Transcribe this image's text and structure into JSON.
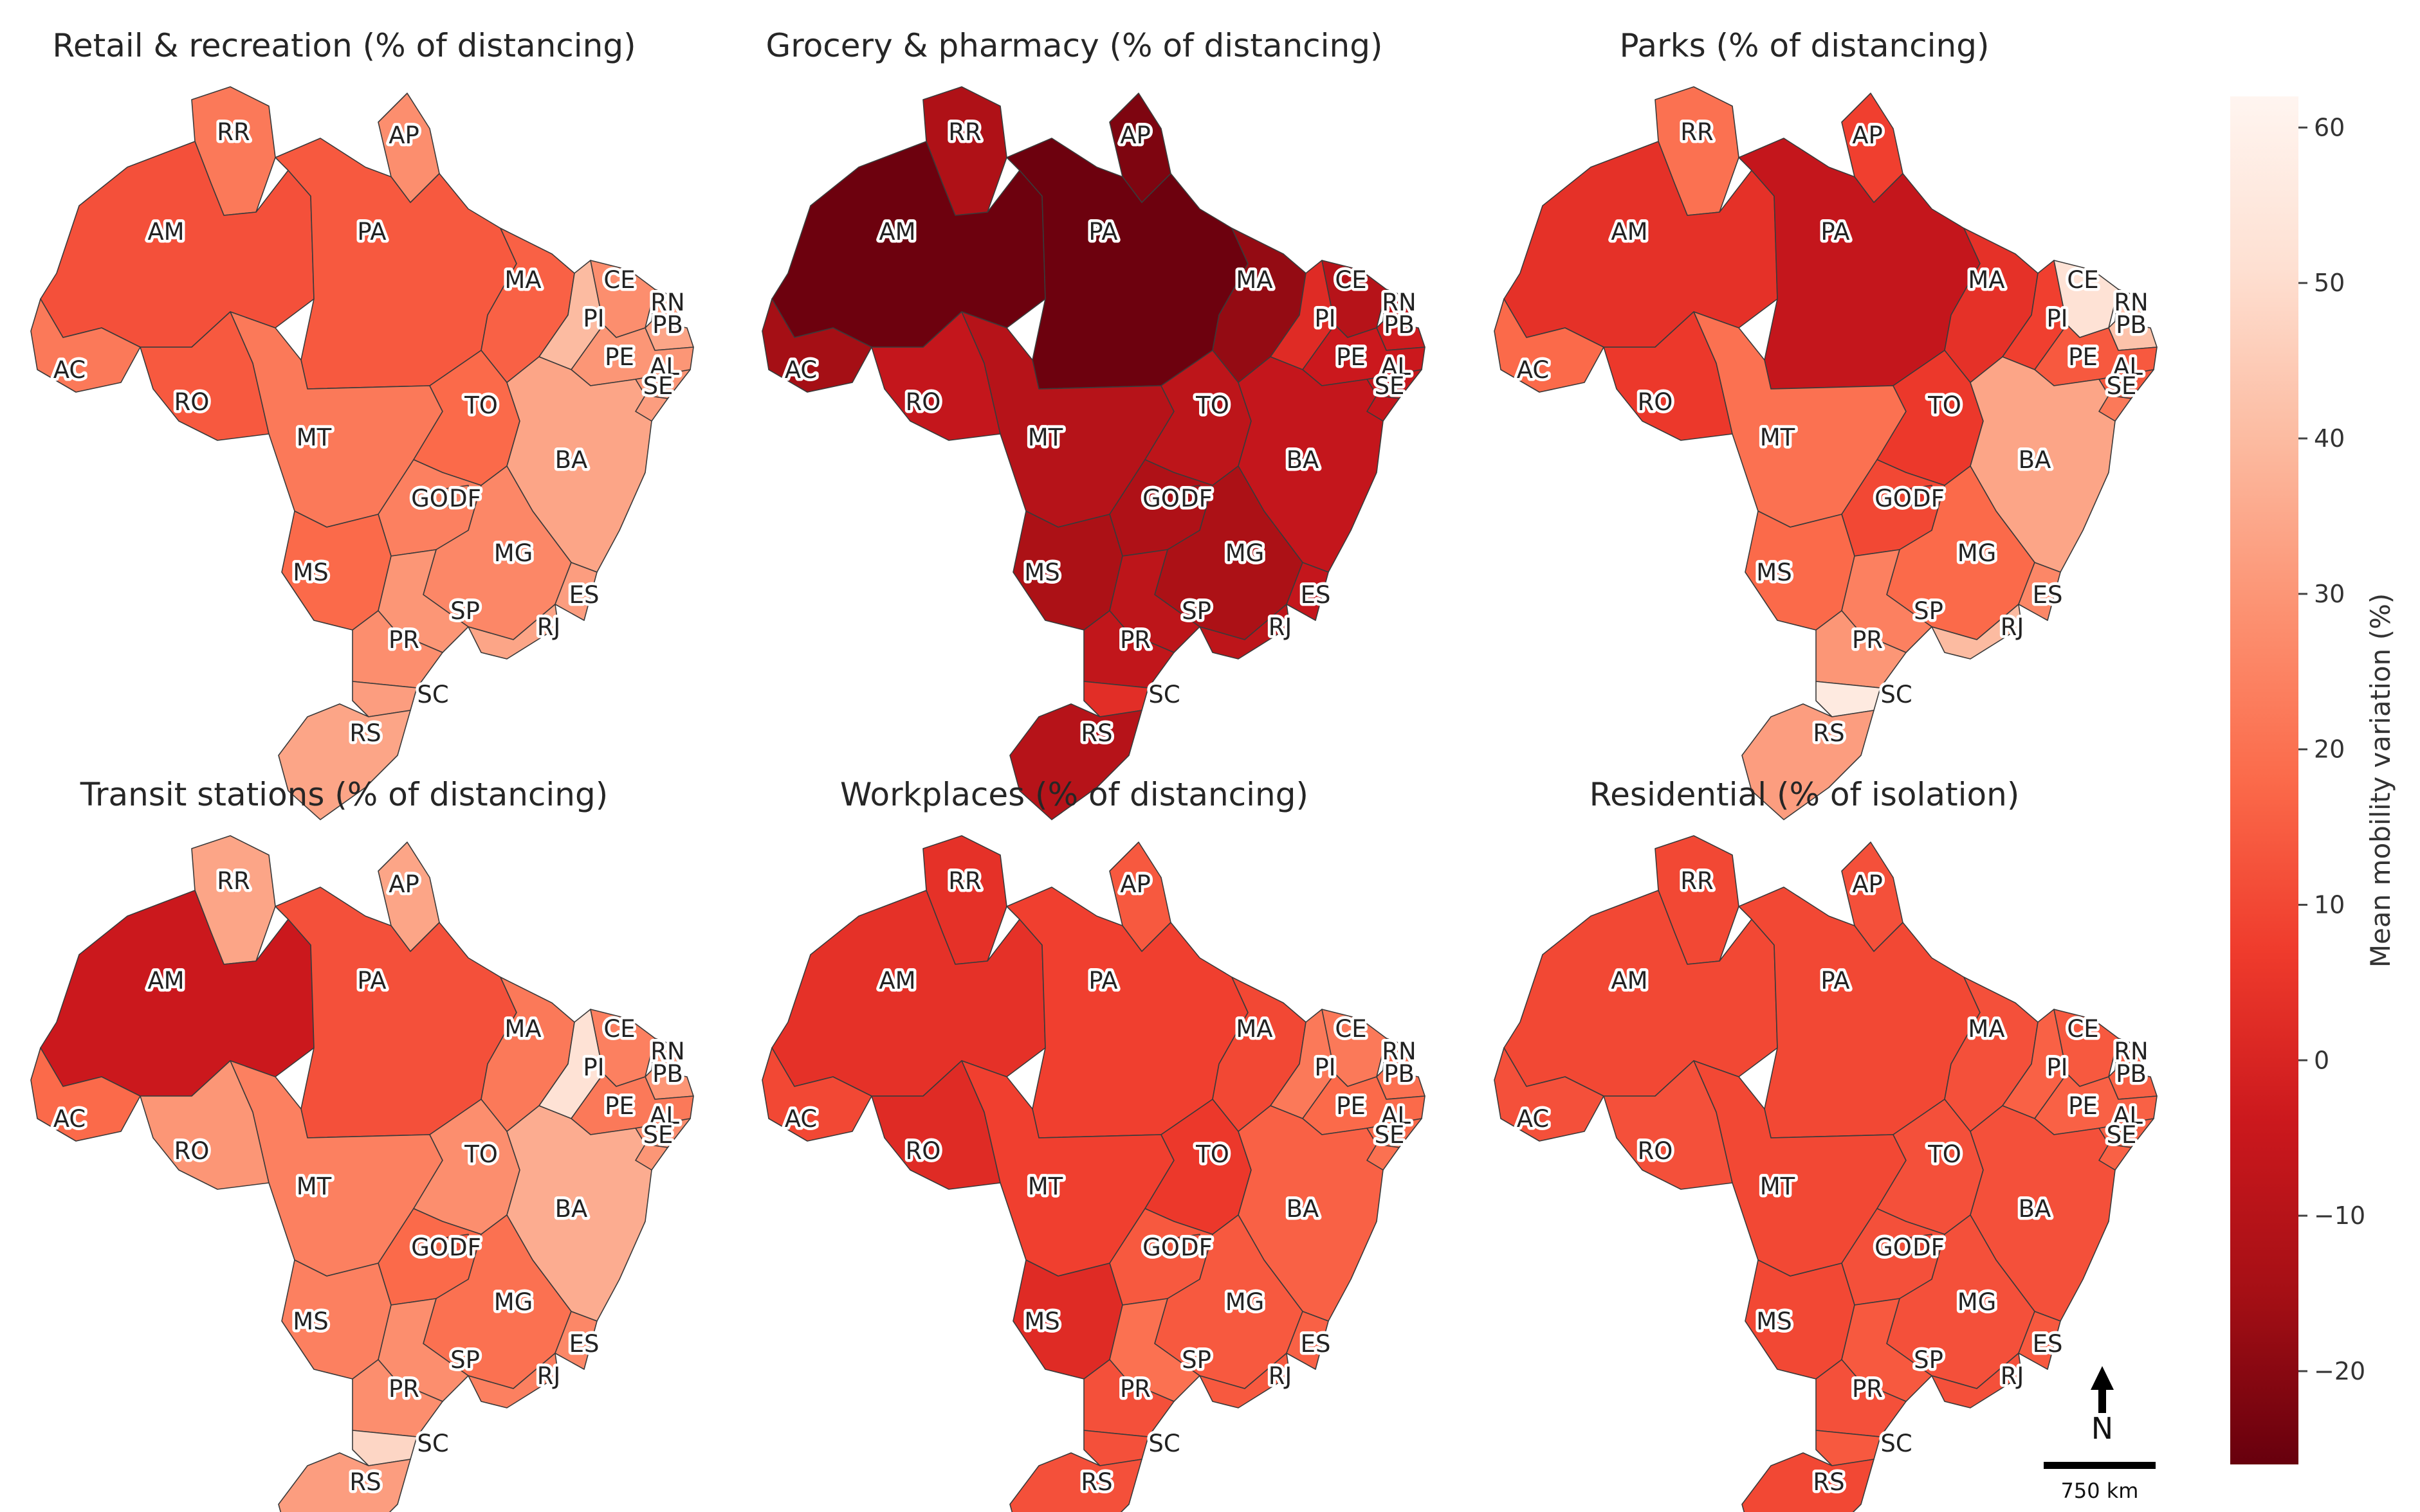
{
  "colorbar": {
    "label": "Mean mobility variation (%)",
    "min": -26,
    "max": 62,
    "ticks": [
      {
        "value": 60,
        "text": "60"
      },
      {
        "value": 50,
        "text": "50"
      },
      {
        "value": 40,
        "text": "40"
      },
      {
        "value": 30,
        "text": "30"
      },
      {
        "value": 20,
        "text": "20"
      },
      {
        "value": 10,
        "text": "10"
      },
      {
        "value": 0,
        "text": "0"
      },
      {
        "value": -10,
        "text": "−10"
      },
      {
        "value": -20,
        "text": "−20"
      }
    ],
    "colormap": "Reds_r",
    "stops": [
      "#67000d",
      "#a50f15",
      "#cb181d",
      "#ef3b2c",
      "#fb6a4a",
      "#fc9272",
      "#fcbba1",
      "#fee0d2",
      "#fff5f0"
    ]
  },
  "scale_bar": {
    "label": "750 km"
  },
  "north_arrow": {
    "label": "N"
  },
  "chart_data": [
    {
      "type": "choropleth",
      "title": "Retail & recreation (% of distancing)",
      "values": {
        "RR": 22,
        "AP": 28,
        "AM": 12,
        "PA": 14,
        "MA": 16,
        "CE": 28,
        "RN": 32,
        "PB": 34,
        "PI": 40,
        "AC": 22,
        "RO": 14,
        "TO": 18,
        "PE": 30,
        "AL": 30,
        "SE": 32,
        "MT": 22,
        "BA": 34,
        "GO": 24,
        "DF": 26,
        "MG": 26,
        "MS": 18,
        "ES": 32,
        "SP": 30,
        "RJ": 34,
        "PR": 28,
        "SC": 32,
        "RS": 34
      }
    },
    {
      "type": "choropleth",
      "title": "Grocery & pharmacy (% of distancing)",
      "values": {
        "RR": -12,
        "AP": -22,
        "AM": -25,
        "PA": -25,
        "MA": -18,
        "CE": -10,
        "RN": -5,
        "PB": -3,
        "PI": 2,
        "AC": -15,
        "RO": -6,
        "TO": -8,
        "PE": -4,
        "AL": -5,
        "SE": -6,
        "MT": -10,
        "BA": -6,
        "GO": -12,
        "DF": -12,
        "MG": -13,
        "MS": -13,
        "ES": -6,
        "SP": -8,
        "RJ": -8,
        "PR": -7,
        "SC": 3,
        "RS": -10
      }
    },
    {
      "type": "choropleth",
      "title": "Parks (% of distancing)",
      "values": {
        "RR": 20,
        "AP": 8,
        "AM": 4,
        "PA": -6,
        "MA": 4,
        "CE": 52,
        "RN": 44,
        "PB": 42,
        "PI": 8,
        "AC": 18,
        "RO": 6,
        "TO": 6,
        "PE": 14,
        "AL": 14,
        "SE": 22,
        "MT": 20,
        "BA": 34,
        "GO": 10,
        "DF": 6,
        "MG": 18,
        "MS": 18,
        "ES": 26,
        "SP": 24,
        "RJ": 40,
        "PR": 30,
        "SC": 56,
        "RS": 32
      }
    },
    {
      "type": "choropleth",
      "title": "Transit stations (% of distancing)",
      "values": {
        "RR": 34,
        "AP": 34,
        "AM": -4,
        "PA": 12,
        "MA": 22,
        "CE": 24,
        "RN": 32,
        "PB": 30,
        "PI": 52,
        "AC": 18,
        "RO": 30,
        "TO": 28,
        "PE": 22,
        "AL": 28,
        "SE": 30,
        "MT": 24,
        "BA": 36,
        "GO": 18,
        "DF": 14,
        "MG": 20,
        "MS": 24,
        "ES": 26,
        "SP": 28,
        "RJ": 24,
        "PR": 28,
        "SC": 48,
        "RS": 32
      }
    },
    {
      "type": "choropleth",
      "title": "Workplaces (% of distancing)",
      "values": {
        "RR": 4,
        "AP": 14,
        "AM": 4,
        "PA": 8,
        "MA": 10,
        "CE": 22,
        "RN": 20,
        "PB": 20,
        "PI": 22,
        "AC": 10,
        "RO": 2,
        "TO": 6,
        "PE": 18,
        "AL": 18,
        "SE": 20,
        "MT": 8,
        "BA": 16,
        "GO": 14,
        "DF": 12,
        "MG": 14,
        "MS": 2,
        "ES": 16,
        "SP": 20,
        "RJ": 14,
        "PR": 12,
        "SC": 12,
        "RS": 12
      }
    },
    {
      "type": "choropleth",
      "title": "Residential (% of isolation)",
      "values": {
        "RR": 10,
        "AP": 12,
        "AM": 10,
        "PA": 10,
        "MA": 12,
        "CE": 14,
        "RN": 16,
        "PB": 16,
        "PI": 16,
        "AC": 12,
        "RO": 12,
        "TO": 12,
        "PE": 16,
        "AL": 16,
        "SE": 16,
        "MT": 10,
        "BA": 12,
        "GO": 12,
        "DF": 10,
        "MG": 12,
        "MS": 10,
        "ES": 14,
        "SP": 14,
        "RJ": 12,
        "PR": 12,
        "SC": 14,
        "RS": 10
      }
    }
  ]
}
